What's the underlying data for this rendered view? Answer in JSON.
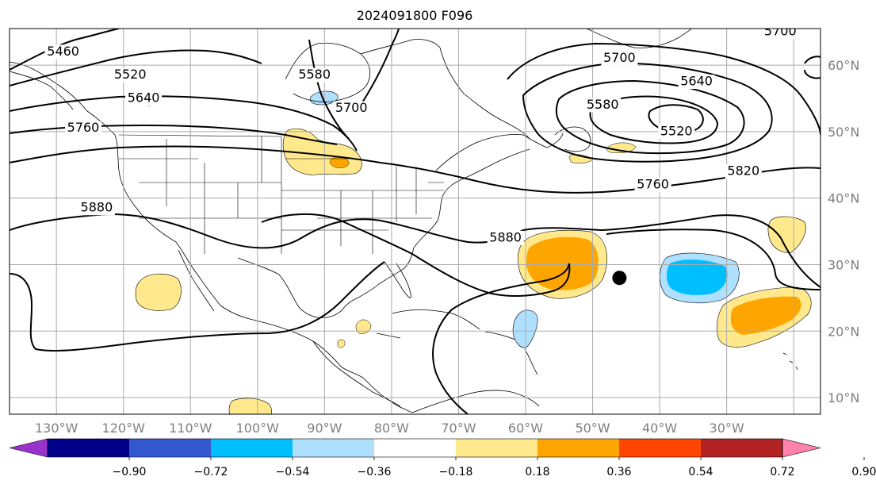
{
  "title": "2024091800 F096",
  "projection": {
    "lon_range": [
      -137,
      -16
    ],
    "lat_range": [
      7.5,
      65.5
    ]
  },
  "grid": {
    "lat_lines": [
      10,
      20,
      30,
      40,
      50,
      60
    ],
    "lon_lines": [
      -130,
      -120,
      -110,
      -100,
      -90,
      -80,
      -70,
      -60,
      -50,
      -40,
      -30,
      -20
    ],
    "lat_labels": [
      "10°N",
      "20°N",
      "30°N",
      "40°N",
      "50°N",
      "60°N"
    ],
    "lon_labels": [
      "130°W",
      "120°W",
      "110°W",
      "100°W",
      "90°W",
      "80°W",
      "70°W",
      "60°W",
      "50°W",
      "40°W",
      "30°W"
    ]
  },
  "contour_labels": [
    {
      "text": "5460",
      "lon": -129,
      "lat": 62
    },
    {
      "text": "5520",
      "lon": -119,
      "lat": 58.5
    },
    {
      "text": "5640",
      "lon": -117,
      "lat": 55
    },
    {
      "text": "5760",
      "lon": -126,
      "lat": 50.5
    },
    {
      "text": "5580",
      "lon": -91.5,
      "lat": 58.5
    },
    {
      "text": "5700",
      "lon": -86,
      "lat": 53.5
    },
    {
      "text": "5880",
      "lon": -124,
      "lat": 38.5
    },
    {
      "text": "5700",
      "lon": -46,
      "lat": 61
    },
    {
      "text": "5640",
      "lon": -34.5,
      "lat": 57.5
    },
    {
      "text": "5580",
      "lon": -48.5,
      "lat": 54
    },
    {
      "text": "5520",
      "lon": -37.5,
      "lat": 50
    },
    {
      "text": "5760",
      "lon": -41,
      "lat": 42
    },
    {
      "text": "5820",
      "lon": -27.5,
      "lat": 44
    },
    {
      "text": "5880",
      "lon": -63,
      "lat": 34
    },
    {
      "text": "5700",
      "lon": -22,
      "lat": 65
    }
  ],
  "storm_marker": {
    "lon": -46,
    "lat": 28
  },
  "colorbar": {
    "colors": [
      "#9932cc",
      "#00008b",
      "#3458d0",
      "#00bfff",
      "#b0e0ff",
      "#ffffff",
      "#ffe98c",
      "#ffa500",
      "#ff4500",
      "#b22222",
      "#ff82ab"
    ],
    "tick_labels": [
      "−0.90",
      "−0.72",
      "−0.54",
      "−0.36",
      "−0.18",
      "0.18",
      "0.36",
      "0.54",
      "0.72",
      "0.90"
    ]
  },
  "colors": {
    "grid": "#aaaaaa",
    "contour": "#000000",
    "coast": "#000000",
    "axis_label": "#7f7f7f"
  }
}
